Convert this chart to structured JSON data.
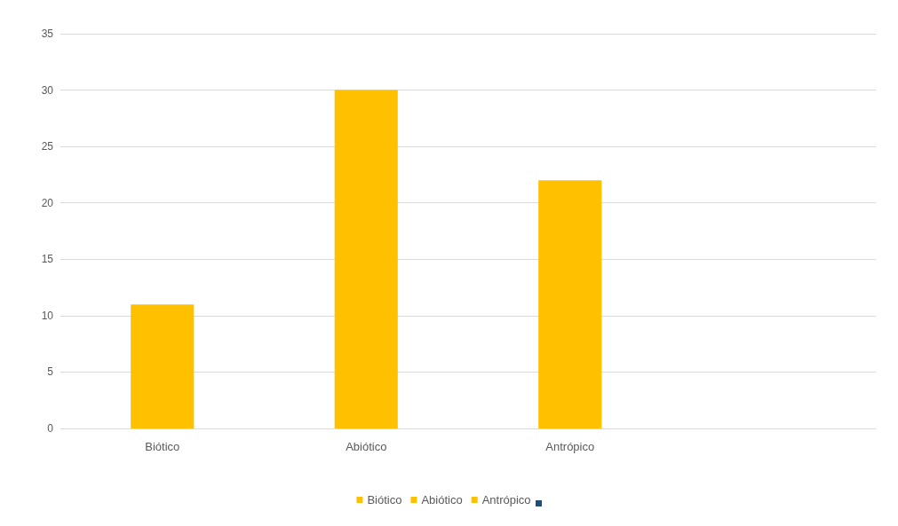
{
  "chart_data": {
    "type": "bar",
    "categories": [
      "Biótico",
      "Abiótico",
      "Antrópico",
      null
    ],
    "stacked": true,
    "series": [
      {
        "name": "Biótico",
        "color": "#ffc000",
        "values": [
          11,
          null,
          null,
          null
        ]
      },
      {
        "name": "Abiótico",
        "color": "#ffc000",
        "values": [
          null,
          30,
          null,
          null
        ]
      },
      {
        "name": "Antrópico",
        "color": "#ffc000",
        "values": [
          null,
          null,
          22,
          null
        ]
      },
      {
        "color": "#1f4e79",
        "values": [
          null,
          null,
          null,
          null
        ]
      }
    ],
    "ylim": [
      0,
      35
    ],
    "yticks": [
      0,
      5,
      10,
      15,
      20,
      25,
      30,
      35
    ],
    "grid": "y",
    "legend": "bottom"
  }
}
